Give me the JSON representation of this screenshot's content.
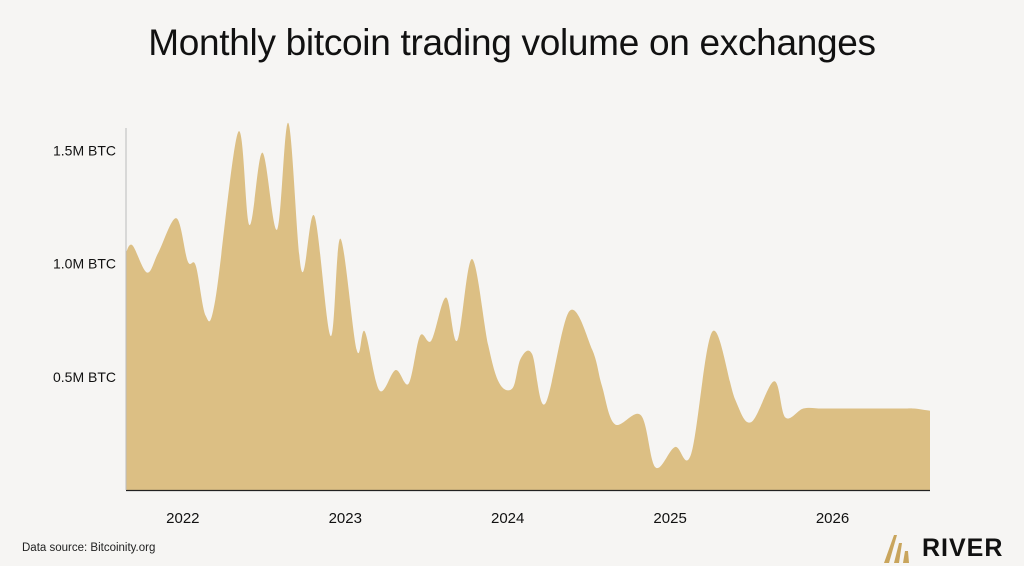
{
  "header": {
    "title": "Monthly bitcoin trading volume on exchanges"
  },
  "footer": {
    "source": "Data source: Bitcoinity.org",
    "brand": "RIVER"
  },
  "colors": {
    "area": "#dcbf84",
    "axis": "#222222",
    "background": "#f6f5f3",
    "brand_gold": "#c9a55c"
  },
  "icons": {
    "brand_logo": "river-logo-icon"
  },
  "chart_data": {
    "type": "area",
    "title": "Monthly bitcoin trading volume on exchanges",
    "xlabel": "",
    "ylabel": "",
    "unit": "BTC",
    "y_ticks": [
      {
        "value": 500000,
        "label": "0.5M BTC"
      },
      {
        "value": 1000000,
        "label": "1.0M BTC"
      },
      {
        "value": 1500000,
        "label": "1.5M BTC"
      }
    ],
    "x_ticks": [
      {
        "value": 2022,
        "label": "2022"
      },
      {
        "value": 2023,
        "label": "2023"
      },
      {
        "value": 2024,
        "label": "2024"
      },
      {
        "value": 2025,
        "label": "2025"
      },
      {
        "value": 2026,
        "label": "2026"
      }
    ],
    "xlim": [
      2021.67,
      2026.62
    ],
    "ylim": [
      0,
      1700000
    ],
    "grid": false,
    "legend": "none",
    "series": [
      {
        "x": [
          2021.67,
          2021.71,
          2021.8,
          2021.87,
          2021.98,
          2022.05,
          2022.1,
          2022.16,
          2022.22,
          2022.36,
          2022.43,
          2022.51,
          2022.6,
          2022.67,
          2022.75,
          2022.83,
          2022.93,
          2022.99,
          2023.09,
          2023.14,
          2023.23,
          2023.33,
          2023.41,
          2023.48,
          2023.55,
          2023.64,
          2023.71,
          2023.8,
          2023.9,
          2023.97,
          2024.05,
          2024.1,
          2024.17,
          2024.25,
          2024.4,
          2024.54,
          2024.6,
          2024.68,
          2024.84,
          2024.93,
          2025.05,
          2025.15,
          2025.28,
          2025.42,
          2025.52,
          2025.66,
          2025.73,
          2025.84,
          2025.95,
          2026.04,
          2026.12,
          2026.27,
          2026.36,
          2026.46,
          2026.52,
          2026.62
        ],
        "values": [
          1050000,
          1080000,
          960000,
          1050000,
          1200000,
          1010000,
          990000,
          770000,
          840000,
          1580000,
          1170000,
          1490000,
          1150000,
          1620000,
          970000,
          1210000,
          680000,
          1110000,
          620000,
          700000,
          440000,
          530000,
          470000,
          680000,
          660000,
          850000,
          660000,
          1020000,
          640000,
          470000,
          450000,
          580000,
          600000,
          380000,
          790000,
          620000,
          460000,
          290000,
          330000,
          100000,
          190000,
          160000,
          700000,
          400000,
          300000,
          480000,
          320000,
          360000,
          360000,
          360000,
          360000,
          360000,
          360000,
          360000,
          360000,
          350000
        ]
      }
    ]
  }
}
